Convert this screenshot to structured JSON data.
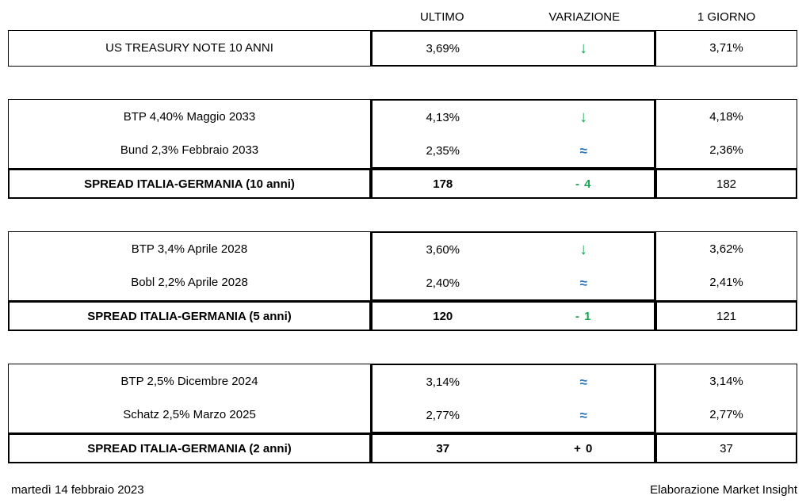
{
  "header": {
    "ultimo": "ULTIMO",
    "variazione": "VARIAZIONE",
    "giorno": "1 GIORNO"
  },
  "colors": {
    "green": "#1FA355",
    "blue": "#2E75B6",
    "black": "#000000"
  },
  "symbols": {
    "down_arrow": "↓",
    "approx": "≈"
  },
  "blocks": [
    {
      "rows": [
        {
          "label": "US TREASURY NOTE 10 ANNI",
          "ultimo": "3,69%",
          "variazione": "↓",
          "var_kind": "down",
          "var_color": "green",
          "giorno": "3,71%"
        }
      ],
      "spread": null
    },
    {
      "rows": [
        {
          "label": "BTP 4,40% Maggio 2033",
          "ultimo": "4,13%",
          "variazione": "↓",
          "var_kind": "down",
          "var_color": "green",
          "giorno": "4,18%"
        },
        {
          "label": "Bund 2,3% Febbraio 2033",
          "ultimo": "2,35%",
          "variazione": "≈",
          "var_kind": "approx",
          "var_color": "blue",
          "giorno": "2,36%"
        }
      ],
      "spread": {
        "label": "SPREAD ITALIA-GERMANIA (10 anni)",
        "ultimo": "178",
        "variazione": "- 4",
        "var_color": "green",
        "giorno": "182"
      }
    },
    {
      "rows": [
        {
          "label": "BTP 3,4% Aprile 2028",
          "ultimo": "3,60%",
          "variazione": "↓",
          "var_kind": "down",
          "var_color": "green",
          "giorno": "3,62%"
        },
        {
          "label": "Bobl 2,2% Aprile 2028",
          "ultimo": "2,40%",
          "variazione": "≈",
          "var_kind": "approx",
          "var_color": "blue",
          "giorno": "2,41%"
        }
      ],
      "spread": {
        "label": "SPREAD ITALIA-GERMANIA (5 anni)",
        "ultimo": "120",
        "variazione": "- 1",
        "var_color": "green",
        "giorno": "121"
      }
    },
    {
      "rows": [
        {
          "label": "BTP 2,5% Dicembre 2024",
          "ultimo": "3,14%",
          "variazione": "≈",
          "var_kind": "approx",
          "var_color": "blue",
          "giorno": "3,14%"
        },
        {
          "label": "Schatz 2,5% Marzo 2025",
          "ultimo": "2,77%",
          "variazione": "≈",
          "var_kind": "approx",
          "var_color": "blue",
          "giorno": "2,77%"
        }
      ],
      "spread": {
        "label": "SPREAD ITALIA-GERMANIA (2 anni)",
        "ultimo": "37",
        "variazione": "+ 0",
        "var_color": "black",
        "giorno": "37"
      }
    }
  ],
  "footer": {
    "date": "martedì 14 febbraio 2023",
    "credit": "Elaborazione Market Insight"
  }
}
